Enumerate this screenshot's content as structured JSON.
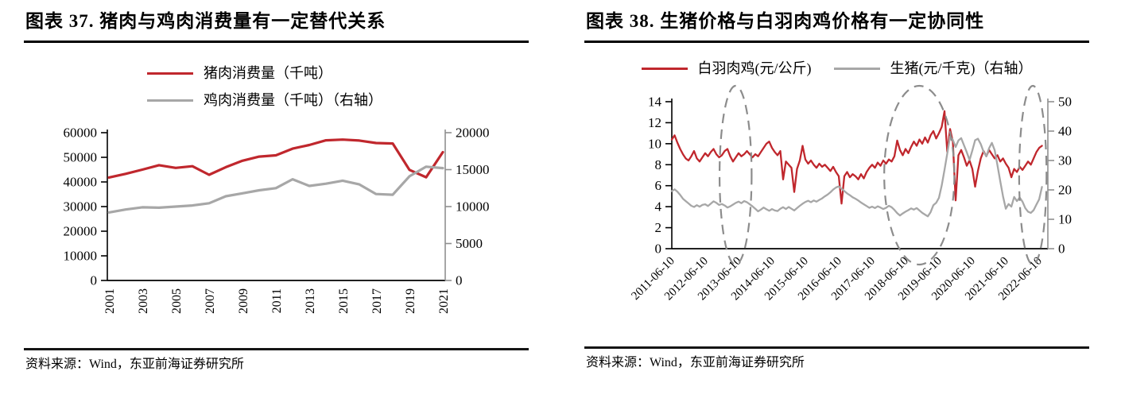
{
  "page": {
    "background": "#ffffff"
  },
  "colors": {
    "series_red": "#C0272D",
    "series_gray": "#A7A7A7",
    "axis_black": "#000000",
    "axis_gray": "#8F8F8F",
    "ellipse_gray": "#8C8C8C",
    "rule_black": "#151515"
  },
  "figure37": {
    "title": "图表 37. 猪肉与鸡肉消费量有一定替代关系",
    "source": "资料来源：Wind，东亚前海证券研究所",
    "chart_data": {
      "type": "line",
      "categories": [
        "2001",
        "2002",
        "2003",
        "2004",
        "2005",
        "2006",
        "2007",
        "2008",
        "2009",
        "2010",
        "2011",
        "2012",
        "2013",
        "2014",
        "2015",
        "2016",
        "2017",
        "2018",
        "2019",
        "2020",
        "2021"
      ],
      "x_tick_labels": [
        "2001",
        "2003",
        "2005",
        "2007",
        "2009",
        "2011",
        "2013",
        "2015",
        "2017",
        "2019",
        "2021"
      ],
      "series": [
        {
          "id": "pork-consumption",
          "name": "猪肉消费量（千吨）",
          "axis": "left",
          "color": "#C0272D",
          "values": [
            41800,
            43300,
            45000,
            46800,
            45700,
            46400,
            42900,
            46000,
            48600,
            50300,
            50800,
            53500,
            55000,
            56900,
            57200,
            56800,
            55800,
            55600,
            44900,
            41900,
            52100
          ]
        },
        {
          "id": "chicken-consumption",
          "name": "鸡肉消费量（千吨）（右轴）",
          "axis": "right",
          "color": "#A7A7A7",
          "values": [
            9200,
            9600,
            9900,
            9850,
            10000,
            10150,
            10450,
            11400,
            11800,
            12200,
            12500,
            13700,
            12800,
            13100,
            13500,
            13000,
            11700,
            11600,
            14100,
            15400,
            15200
          ]
        }
      ],
      "left_axis": {
        "min": 0,
        "max": 60000,
        "tick_step": 10000,
        "ticks": [
          0,
          10000,
          20000,
          30000,
          40000,
          50000,
          60000
        ]
      },
      "right_axis": {
        "min": 0,
        "max": 20000,
        "tick_step": 5000,
        "ticks": [
          0,
          5000,
          10000,
          15000,
          20000
        ]
      },
      "grid": false,
      "legend_position": "top-left-stacked"
    }
  },
  "figure38": {
    "title": "图表 38. 生猪价格与白羽肉鸡价格有一定协同性",
    "source": "资料来源：Wind，东亚前海证券研究所",
    "chart_data": {
      "type": "line",
      "x_mode": "time",
      "x_start": 2011.44,
      "x_step_years": 0.08333,
      "x_range": [
        2011.44,
        2022.7
      ],
      "x_tick_labels": [
        "2011-06-10",
        "2012-06-10",
        "2013-06-10",
        "2014-06-10",
        "2015-06-10",
        "2016-06-10",
        "2017-06-10",
        "2018-06-10",
        "2019-06-10",
        "2020-06-10",
        "2021-06-10",
        "2022-06-10"
      ],
      "series": [
        {
          "id": "broiler-price",
          "name": "白羽肉鸡(元/公斤)",
          "axis": "left",
          "color": "#C0272D",
          "values": [
            10.4,
            10.8,
            10.1,
            9.5,
            9.0,
            8.6,
            8.4,
            8.8,
            9.3,
            8.6,
            8.3,
            8.7,
            9.1,
            8.8,
            9.2,
            9.5,
            9.0,
            8.7,
            8.9,
            9.3,
            9.5,
            8.8,
            8.3,
            8.7,
            9.1,
            8.8,
            9.0,
            9.3,
            9.0,
            8.7,
            9.0,
            8.8,
            9.2,
            9.6,
            10.0,
            10.2,
            9.6,
            9.2,
            8.9,
            9.3,
            6.6,
            8.3,
            8.0,
            7.7,
            5.4,
            7.6,
            8.4,
            9.8,
            8.5,
            8.1,
            8.4,
            8.0,
            7.7,
            8.1,
            7.8,
            8.0,
            7.7,
            7.4,
            7.8,
            7.3,
            6.9,
            4.3,
            6.9,
            7.3,
            6.8,
            7.1,
            6.9,
            6.6,
            7.1,
            6.7,
            7.3,
            7.7,
            8.0,
            7.7,
            8.2,
            7.9,
            8.4,
            8.1,
            8.5,
            8.3,
            8.8,
            10.3,
            9.4,
            8.9,
            9.5,
            9.1,
            9.7,
            10.2,
            9.8,
            10.4,
            10.0,
            10.6,
            10.1,
            10.8,
            11.2,
            10.5,
            11.0,
            11.6,
            13.1,
            9.2,
            11.4,
            10.2,
            4.6,
            8.9,
            9.4,
            8.7,
            7.9,
            8.4,
            7.6,
            5.9,
            7.4,
            8.6,
            9.3,
            8.8,
            9.4,
            9.0,
            8.6,
            8.9,
            8.3,
            8.6,
            8.1,
            7.7,
            6.8,
            7.6,
            7.3,
            7.8,
            7.5,
            7.9,
            8.3,
            8.0,
            8.6,
            9.2,
            9.6,
            9.8
          ]
        },
        {
          "id": "hog-price",
          "name": "生猪(元/千克)（右轴）",
          "axis": "right",
          "color": "#A7A7A7",
          "values": [
            19.6,
            20.2,
            19.4,
            18.3,
            17.0,
            16.2,
            15.4,
            14.6,
            14.2,
            14.8,
            14.3,
            14.9,
            15.1,
            14.5,
            15.3,
            16.1,
            15.6,
            14.9,
            15.2,
            14.7,
            14.0,
            14.4,
            15.0,
            15.6,
            16.0,
            15.5,
            16.2,
            15.8,
            15.1,
            14.4,
            13.6,
            12.7,
            13.3,
            14.0,
            13.4,
            12.9,
            13.5,
            13.0,
            12.8,
            13.6,
            14.1,
            13.5,
            14.2,
            13.6,
            13.0,
            13.8,
            14.6,
            15.3,
            15.9,
            16.3,
            15.8,
            16.4,
            16.0,
            16.6,
            17.1,
            17.8,
            18.4,
            19.2,
            20.1,
            20.8,
            21.2,
            20.4,
            19.6,
            18.8,
            18.2,
            17.5,
            17.0,
            16.4,
            15.7,
            15.1,
            14.5,
            13.9,
            14.3,
            13.8,
            14.4,
            14.0,
            13.5,
            13.9,
            14.6,
            14.1,
            13.2,
            12.1,
            11.3,
            12.0,
            12.6,
            13.1,
            13.7,
            13.3,
            13.8,
            13.0,
            12.2,
            11.6,
            11.0,
            12.4,
            14.8,
            15.6,
            17.3,
            21.5,
            26.8,
            32.4,
            38.2,
            37.0,
            34.6,
            36.8,
            37.6,
            35.2,
            32.8,
            30.2,
            33.4,
            36.9,
            37.4,
            35.6,
            33.0,
            31.4,
            34.2,
            36.0,
            33.5,
            28.4,
            23.0,
            17.8,
            13.6,
            15.2,
            14.3,
            17.6,
            16.2,
            17.4,
            16.0,
            13.8,
            12.6,
            12.2,
            13.1,
            15.0,
            16.8,
            21.0
          ]
        }
      ],
      "left_axis": {
        "min": 0,
        "max": 14,
        "tick_step": 2,
        "ticks": [
          0,
          2,
          4,
          6,
          8,
          10,
          12,
          14
        ]
      },
      "right_axis": {
        "min": 0,
        "max": 50,
        "tick_step": 10,
        "ticks": [
          0,
          10,
          20,
          30,
          40,
          50
        ]
      },
      "annotations": {
        "ellipses": [
          {
            "center_x": 2013.35,
            "rx_years": 0.48
          },
          {
            "center_x": 2018.85,
            "rx_years": 1.05
          },
          {
            "center_x": 2022.25,
            "rx_years": 0.41
          }
        ]
      },
      "grid": false,
      "legend_position": "top-center"
    }
  }
}
